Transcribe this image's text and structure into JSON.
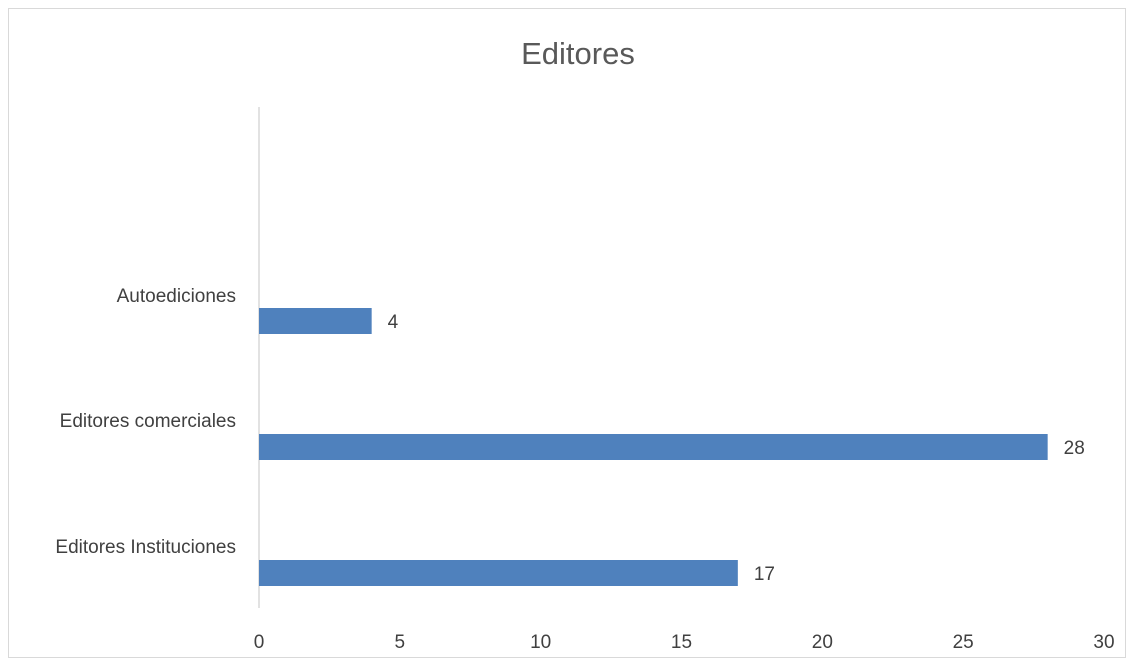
{
  "chart_data": {
    "type": "bar",
    "orientation": "horizontal",
    "title": "Editores",
    "categories": [
      "Autoediciones",
      "Editores comerciales",
      "Editores Instituciones"
    ],
    "values": [
      4,
      28,
      17
    ],
    "data_labels": [
      "4",
      "28",
      "17"
    ],
    "xlim": [
      0,
      30
    ],
    "x_ticks": [
      0,
      5,
      10,
      15,
      20,
      25,
      30
    ],
    "x_tick_labels": [
      "0",
      "5",
      "10",
      "15",
      "20",
      "25",
      "30"
    ],
    "grid": false,
    "legend": "none",
    "bar_color": "#4f81bd"
  }
}
